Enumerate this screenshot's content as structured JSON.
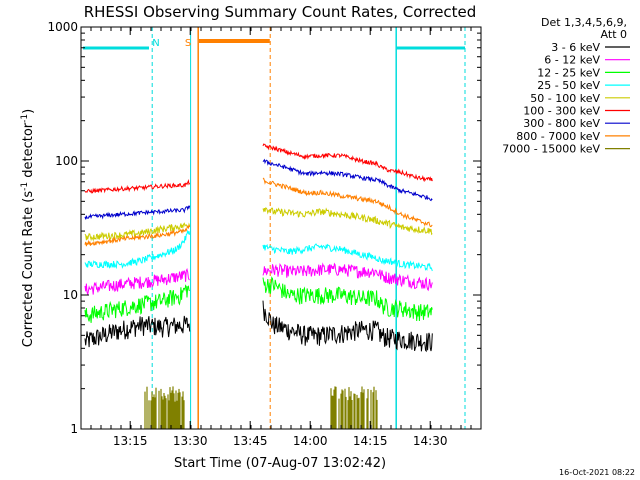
{
  "chart_data": {
    "type": "line",
    "title": "RHESSI Observing Summary Count Rates, Corrected",
    "xlabel": "Start Time (07-Aug-07 13:02:42)",
    "ylabel_main": "Corrected Count Rate (s",
    "ylabel_sup1": "-1",
    "ylabel_mid": " detector",
    "ylabel_sup2": "-1",
    "ylabel_end": ")",
    "yscale": "log",
    "ylim": [
      1,
      1000
    ],
    "xlim_minutes": [
      0,
      100
    ],
    "x_ticks": [
      {
        "t": 12.3,
        "label": "13:15"
      },
      {
        "t": 27.3,
        "label": "13:30"
      },
      {
        "t": 42.3,
        "label": "13:45"
      },
      {
        "t": 57.3,
        "label": "14:00"
      },
      {
        "t": 72.3,
        "label": "14:15"
      },
      {
        "t": 87.3,
        "label": "14:30"
      }
    ],
    "y_ticks": [
      {
        "v": 1,
        "label": "1"
      },
      {
        "v": 10,
        "label": "10"
      },
      {
        "v": 100,
        "label": "100"
      },
      {
        "v": 1000,
        "label": "1000"
      }
    ],
    "legend_header": [
      "Det 1,3,4,5,6,9,",
      "Att 0"
    ],
    "series": [
      {
        "name": "3 - 6 keV",
        "color": "#000000",
        "points": [
          [
            1,
            4.5
          ],
          [
            10,
            5.5
          ],
          [
            15,
            6
          ],
          [
            20,
            5.8
          ],
          [
            26,
            6
          ],
          [
            45.5,
            8
          ],
          [
            48,
            6
          ],
          [
            52,
            5.5
          ],
          [
            56,
            5
          ],
          [
            60,
            5
          ],
          [
            65,
            5.2
          ],
          [
            70,
            5.5
          ],
          [
            74,
            5.5
          ],
          [
            75,
            5
          ],
          [
            77,
            4.8
          ],
          [
            80,
            4.7
          ],
          [
            84,
            4.6
          ],
          [
            88,
            4.5
          ]
        ]
      },
      {
        "name": "6 - 12 keV",
        "color": "#ff00ff",
        "points": [
          [
            1,
            11
          ],
          [
            10,
            12
          ],
          [
            15,
            12.5
          ],
          [
            20,
            13
          ],
          [
            26,
            14
          ],
          [
            45.5,
            15
          ],
          [
            48,
            15.5
          ],
          [
            52,
            15
          ],
          [
            56,
            15
          ],
          [
            60,
            15.5
          ],
          [
            65,
            15.5
          ],
          [
            70,
            15
          ],
          [
            74,
            15
          ],
          [
            75,
            14
          ],
          [
            77,
            13.5
          ],
          [
            80,
            13
          ],
          [
            84,
            12.5
          ],
          [
            88,
            12
          ]
        ]
      },
      {
        "name": "12 - 25 keV",
        "color": "#00ff00",
        "points": [
          [
            1,
            7
          ],
          [
            10,
            8
          ],
          [
            15,
            8.5
          ],
          [
            20,
            9
          ],
          [
            25,
            10
          ],
          [
            26,
            11
          ],
          [
            45.5,
            12
          ],
          [
            48,
            12
          ],
          [
            52,
            10
          ],
          [
            56,
            10
          ],
          [
            60,
            10
          ],
          [
            65,
            10
          ],
          [
            70,
            9.5
          ],
          [
            74,
            9.5
          ],
          [
            75,
            8.5
          ],
          [
            77,
            8
          ],
          [
            80,
            8
          ],
          [
            84,
            7.5
          ],
          [
            88,
            7.5
          ]
        ]
      },
      {
        "name": "25 - 50 keV",
        "color": "#00ffff",
        "points": [
          [
            1,
            17
          ],
          [
            10,
            17
          ],
          [
            15,
            18
          ],
          [
            20,
            20
          ],
          [
            24,
            22
          ],
          [
            26,
            26
          ],
          [
            27,
            30
          ],
          [
            45.5,
            23
          ],
          [
            48,
            22
          ],
          [
            52,
            21
          ],
          [
            56,
            22
          ],
          [
            60,
            23
          ],
          [
            65,
            22
          ],
          [
            70,
            20
          ],
          [
            74,
            19
          ],
          [
            75,
            18
          ],
          [
            77,
            18
          ],
          [
            80,
            17
          ],
          [
            84,
            16.5
          ],
          [
            88,
            16
          ]
        ]
      },
      {
        "name": "50 - 100 keV",
        "color": "#cccc00",
        "points": [
          [
            1,
            27
          ],
          [
            10,
            28
          ],
          [
            15,
            29
          ],
          [
            20,
            31
          ],
          [
            26,
            33
          ],
          [
            45.5,
            45
          ],
          [
            48,
            42
          ],
          [
            52,
            41
          ],
          [
            56,
            40
          ],
          [
            60,
            42
          ],
          [
            65,
            40
          ],
          [
            70,
            38
          ],
          [
            74,
            36
          ],
          [
            75,
            35
          ],
          [
            77,
            34
          ],
          [
            80,
            32
          ],
          [
            84,
            31
          ],
          [
            88,
            30
          ]
        ]
      },
      {
        "name": "100 - 300 keV",
        "color": "#ff0000",
        "points": [
          [
            1,
            59
          ],
          [
            10,
            62
          ],
          [
            15,
            63
          ],
          [
            20,
            65
          ],
          [
            26,
            66
          ],
          [
            45.5,
            130
          ],
          [
            48,
            125
          ],
          [
            52,
            115
          ],
          [
            56,
            108
          ],
          [
            60,
            110
          ],
          [
            65,
            110
          ],
          [
            70,
            100
          ],
          [
            74,
            95
          ],
          [
            75,
            90
          ],
          [
            77,
            85
          ],
          [
            80,
            82
          ],
          [
            84,
            75
          ],
          [
            88,
            72
          ]
        ]
      },
      {
        "name": "300 - 800 keV",
        "color": "#0000cc",
        "points": [
          [
            1,
            38
          ],
          [
            10,
            40
          ],
          [
            15,
            41
          ],
          [
            20,
            42
          ],
          [
            26,
            43
          ],
          [
            45.5,
            100
          ],
          [
            48,
            95
          ],
          [
            52,
            88
          ],
          [
            56,
            80
          ],
          [
            60,
            82
          ],
          [
            65,
            80
          ],
          [
            70,
            75
          ],
          [
            74,
            72
          ],
          [
            75,
            70
          ],
          [
            77,
            65
          ],
          [
            80,
            60
          ],
          [
            84,
            56
          ],
          [
            88,
            52
          ]
        ]
      },
      {
        "name": "800 - 7000 keV",
        "color": "#ff8000",
        "points": [
          [
            1,
            24
          ],
          [
            10,
            26
          ],
          [
            15,
            27
          ],
          [
            20,
            28
          ],
          [
            26,
            30
          ],
          [
            45.5,
            72
          ],
          [
            48,
            68
          ],
          [
            52,
            63
          ],
          [
            56,
            58
          ],
          [
            60,
            58
          ],
          [
            65,
            55
          ],
          [
            70,
            52
          ],
          [
            74,
            50
          ],
          [
            75,
            48
          ],
          [
            77,
            45
          ],
          [
            80,
            40
          ],
          [
            84,
            36
          ],
          [
            88,
            33
          ]
        ]
      },
      {
        "name": "7000 - 15000 keV",
        "color": "#808000",
        "bursts": [
          [
            16,
            26
          ],
          [
            62.5,
            74
          ]
        ]
      }
    ],
    "annotations": [
      {
        "text": "N",
        "color": "#00dddd",
        "t": 18
      },
      {
        "text": "S",
        "color": "#ff8000",
        "t": 27.5
      }
    ],
    "timestamp": "16-Oct-2021 08:22"
  }
}
